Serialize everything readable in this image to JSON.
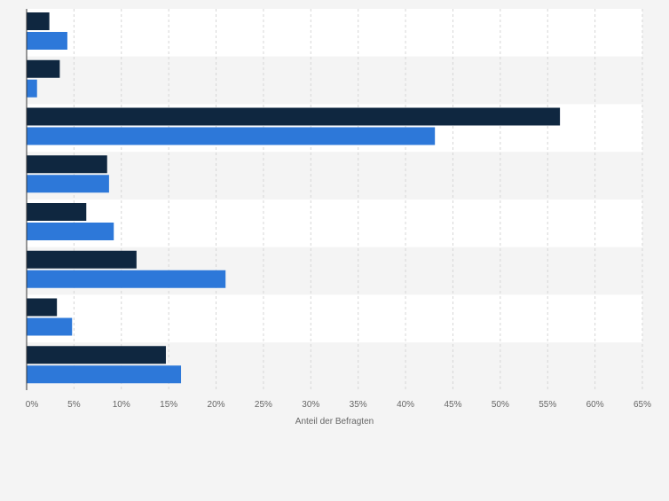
{
  "chart_data": {
    "type": "bar",
    "orientation": "horizontal",
    "categories": [
      "",
      "",
      "",
      "",
      "",
      "",
      "",
      ""
    ],
    "series": [
      {
        "name": "",
        "color": "#0f2740",
        "values": [
          2.4,
          3.5,
          56.3,
          8.5,
          6.3,
          11.6,
          3.2,
          14.7
        ]
      },
      {
        "name": "",
        "color": "#2d78d9",
        "values": [
          4.3,
          1.1,
          43.1,
          8.7,
          9.2,
          21.0,
          4.8,
          16.3
        ]
      }
    ],
    "xlim": [
      0,
      65
    ],
    "xticks": [
      "0%",
      "5%",
      "10%",
      "15%",
      "20%",
      "25%",
      "30%",
      "35%",
      "40%",
      "45%",
      "50%",
      "55%",
      "60%",
      "65%"
    ],
    "xlabel": "Anteil der Befragten",
    "grid": true,
    "colors": {
      "background": "#f4f4f4",
      "band_light": "#ffffff",
      "band_dark": "#f4f4f4",
      "grid": "#d6d6d6",
      "axis": "#333333",
      "tick_text": "#666666"
    }
  }
}
